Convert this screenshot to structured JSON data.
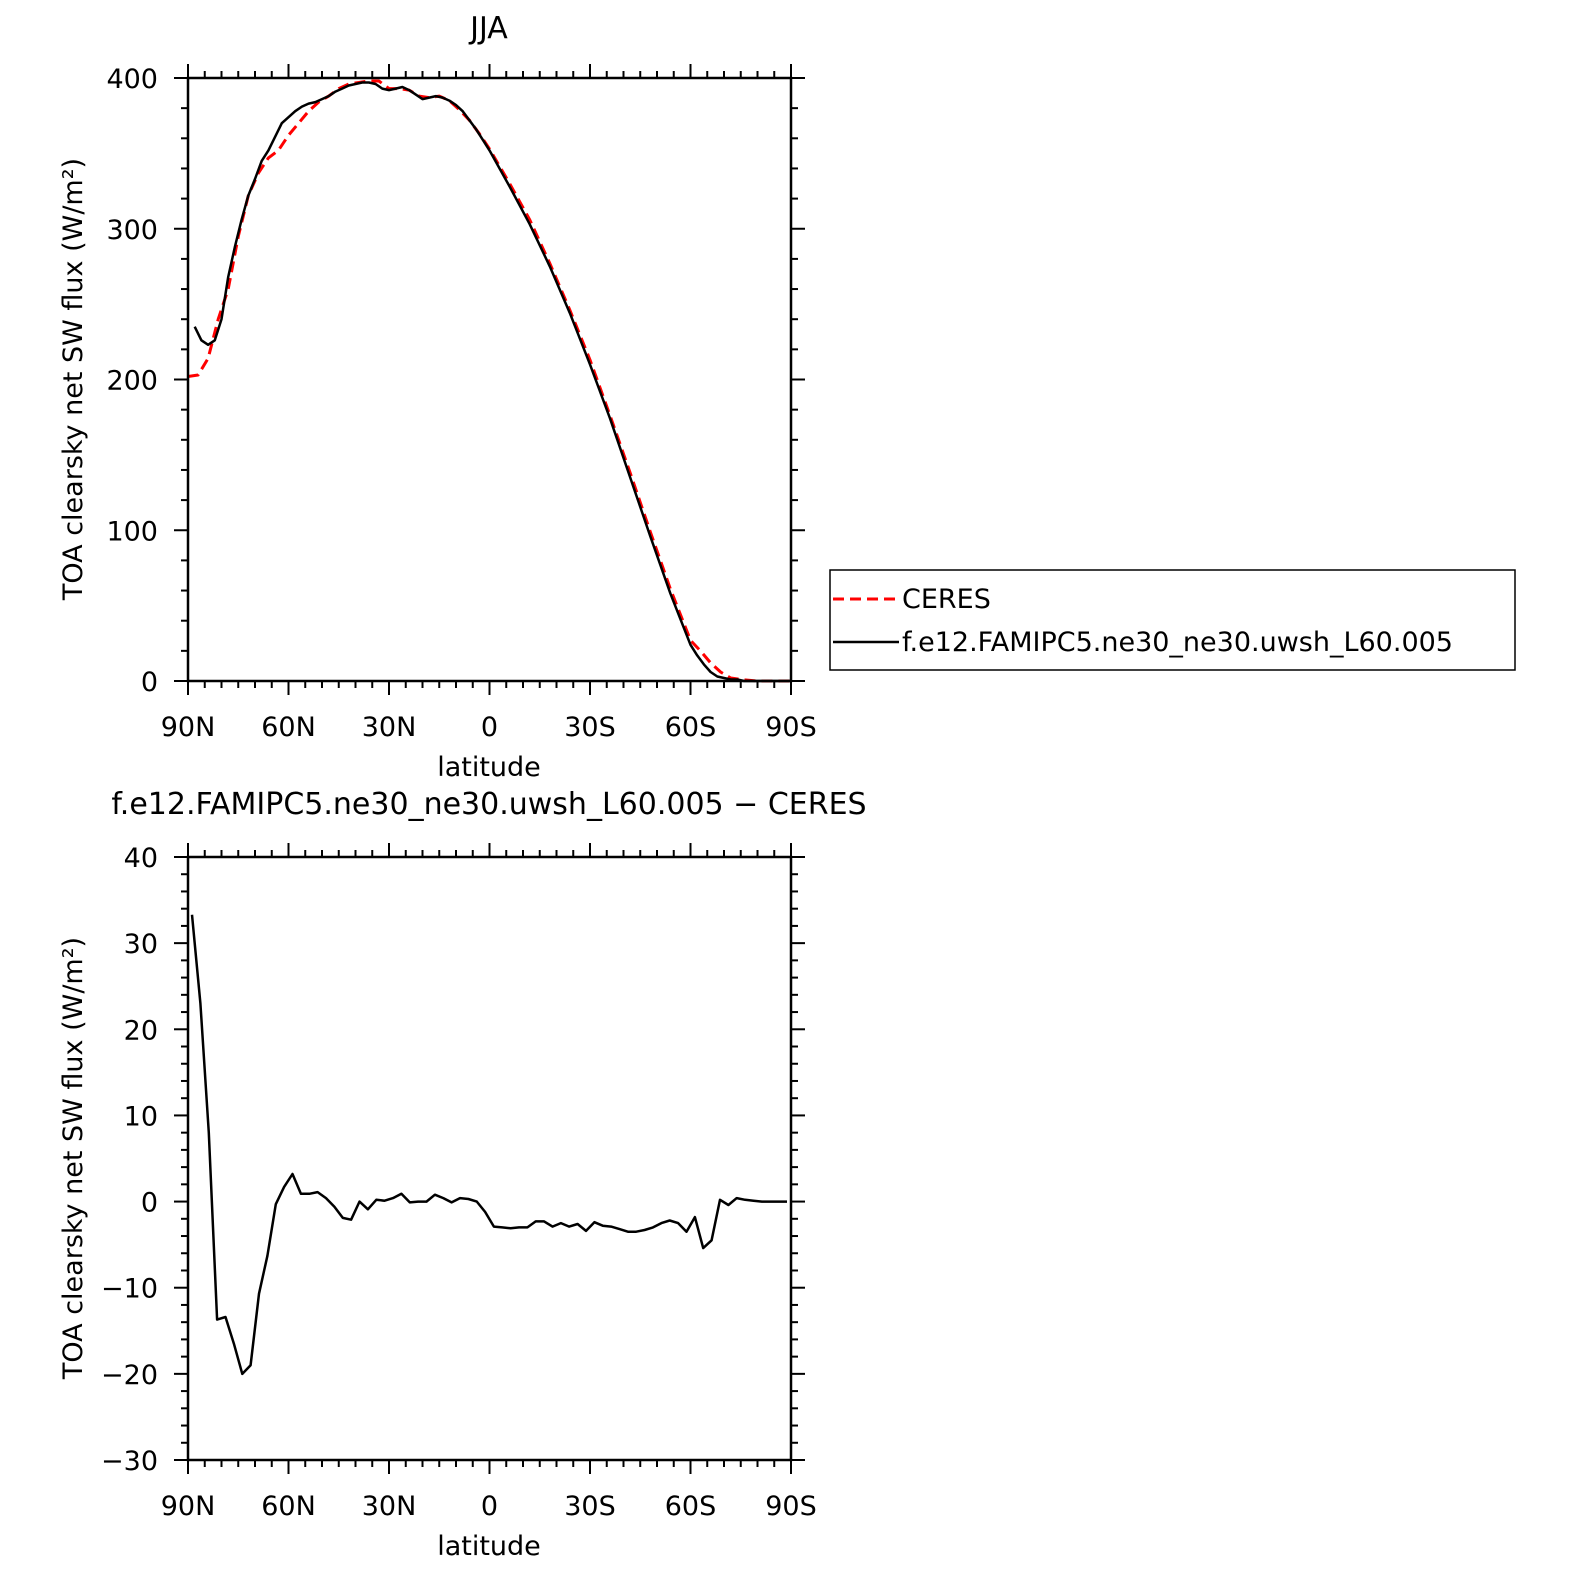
{
  "chart_data": [
    {
      "type": "line",
      "title": "JJA",
      "xlabel": "latitude",
      "ylabel": "TOA clearsky net SW flux (W/m²)",
      "xlim": [
        90,
        -90
      ],
      "ylim": [
        0,
        400
      ],
      "xticks": [
        90,
        60,
        30,
        0,
        -30,
        -60,
        -90
      ],
      "xtick_labels": [
        "90N",
        "60N",
        "30N",
        "0",
        "30S",
        "60S",
        "90S"
      ],
      "yticks": [
        0,
        100,
        200,
        300,
        400
      ],
      "ytick_labels": [
        "0",
        "100",
        "200",
        "300",
        "400"
      ],
      "grid": false,
      "legend_placement": "outside-right",
      "series": [
        {
          "name": "CERES",
          "color": "#ff0000",
          "dash": "dashed",
          "x": [
            90,
            87,
            84,
            81,
            78,
            75,
            72,
            69,
            66,
            63,
            60,
            57,
            54,
            51,
            48,
            45,
            42,
            39,
            36,
            33,
            30,
            27,
            24,
            21,
            18,
            15,
            12,
            9,
            6,
            3,
            0,
            -6,
            -12,
            -18,
            -24,
            -30,
            -36,
            -42,
            -48,
            -54,
            -60,
            -63,
            -66,
            -69,
            -72,
            -75,
            -80,
            -90
          ],
          "values": [
            202,
            203,
            214,
            240,
            260,
            295,
            322,
            337,
            347,
            352,
            362,
            370,
            378,
            384,
            388,
            393,
            396,
            397,
            398,
            398,
            393,
            393,
            392,
            388,
            387,
            388,
            385,
            379,
            372,
            363,
            353,
            330,
            306,
            277,
            246,
            213,
            176,
            138,
            99,
            61,
            27,
            20,
            12,
            6,
            2,
            1,
            0,
            0
          ]
        },
        {
          "name": "f.e12.FAMIPC5.ne30_ne30.uwsh_L60.005",
          "color": "#000000",
          "dash": "solid",
          "x": [
            88,
            86,
            84,
            82,
            80,
            78,
            76,
            74,
            72,
            70,
            68,
            66,
            64,
            62,
            60,
            58,
            56,
            54,
            52,
            50,
            48,
            46,
            44,
            42,
            40,
            38,
            36,
            34,
            32,
            30,
            28,
            26,
            24,
            22,
            20,
            18,
            16,
            14,
            12,
            10,
            8,
            6,
            4,
            2,
            0,
            -6,
            -12,
            -18,
            -24,
            -30,
            -36,
            -42,
            -48,
            -54,
            -60,
            -62,
            -64,
            -66,
            -68,
            -70,
            -72,
            -74,
            -76,
            -78,
            -80,
            -82,
            -84,
            -86,
            -88,
            -90
          ],
          "values": [
            235,
            226,
            223,
            226,
            240,
            268,
            288,
            306,
            322,
            333,
            345,
            352,
            361,
            370,
            374,
            378,
            381,
            383,
            384,
            386,
            388,
            391,
            393,
            395,
            396,
            397,
            397,
            396,
            393,
            392,
            393,
            394,
            392,
            389,
            386,
            387,
            388,
            387,
            385,
            382,
            378,
            372,
            366,
            359,
            352,
            328,
            303,
            275,
            244,
            210,
            174,
            135,
            96,
            58,
            24,
            17,
            11,
            6,
            3,
            2,
            1,
            1,
            0,
            0,
            0,
            0,
            0,
            0,
            0,
            0
          ]
        }
      ]
    },
    {
      "type": "line",
      "title": "f.e12.FAMIPC5.ne30_ne30.uwsh_L60.005 − CERES",
      "xlabel": "latitude",
      "ylabel": "TOA clearsky net SW flux (W/m²)",
      "xlim": [
        90,
        -90
      ],
      "ylim": [
        -30,
        40
      ],
      "xticks": [
        90,
        60,
        30,
        0,
        -30,
        -60,
        -90
      ],
      "xtick_labels": [
        "90N",
        "60N",
        "30N",
        "0",
        "30S",
        "60S",
        "90S"
      ],
      "yticks": [
        -30,
        -20,
        -10,
        0,
        10,
        20,
        30,
        40
      ],
      "ytick_labels": [
        "−30",
        "−20",
        "−10",
        "0",
        "10",
        "20",
        "30",
        "40"
      ],
      "grid": false,
      "series": [
        {
          "color": "#000000",
          "dash": "solid",
          "x": [
            88.8,
            86.3,
            83.8,
            81.3,
            78.8,
            76.3,
            73.8,
            71.3,
            68.8,
            66.3,
            63.8,
            61.3,
            58.8,
            56.3,
            53.8,
            51.3,
            48.8,
            46.3,
            43.8,
            41.3,
            38.8,
            36.3,
            33.8,
            31.3,
            28.8,
            26.3,
            23.8,
            21.3,
            18.8,
            16.3,
            13.8,
            11.3,
            8.8,
            6.3,
            3.8,
            1.3,
            -1.3,
            -3.8,
            -6.3,
            -8.8,
            -11.3,
            -13.8,
            -16.3,
            -18.8,
            -21.3,
            -23.8,
            -26.3,
            -28.8,
            -31.3,
            -33.8,
            -36.3,
            -38.8,
            -41.3,
            -43.8,
            -46.3,
            -48.8,
            -51.3,
            -53.8,
            -56.3,
            -58.8,
            -61.3,
            -63.8,
            -66.3,
            -68.8,
            -71.3,
            -73.8,
            -76.3,
            -78.8,
            -81.3,
            -83.8,
            -86.3,
            -88.8
          ],
          "values": [
            33.3,
            23.0,
            8.0,
            -13.7,
            -13.4,
            -16.5,
            -20.0,
            -19.0,
            -10.7,
            -6.3,
            -0.3,
            1.7,
            3.2,
            0.9,
            0.9,
            1.1,
            0.4,
            -0.6,
            -1.9,
            -2.1,
            0.0,
            -0.9,
            0.2,
            0.1,
            0.4,
            0.9,
            -0.1,
            0.0,
            0.0,
            0.8,
            0.4,
            -0.1,
            0.4,
            0.3,
            0.0,
            -1.2,
            -2.9,
            -3.0,
            -3.1,
            -3.0,
            -3.0,
            -2.3,
            -2.3,
            -2.9,
            -2.5,
            -2.9,
            -2.6,
            -3.4,
            -2.4,
            -2.8,
            -2.9,
            -3.2,
            -3.5,
            -3.5,
            -3.3,
            -3.0,
            -2.5,
            -2.2,
            -2.5,
            -3.5,
            -1.8,
            -5.4,
            -4.5,
            0.2,
            -0.4,
            0.4,
            0.2,
            0.1,
            0.0,
            0.0,
            0.0,
            0.0
          ]
        }
      ]
    }
  ]
}
